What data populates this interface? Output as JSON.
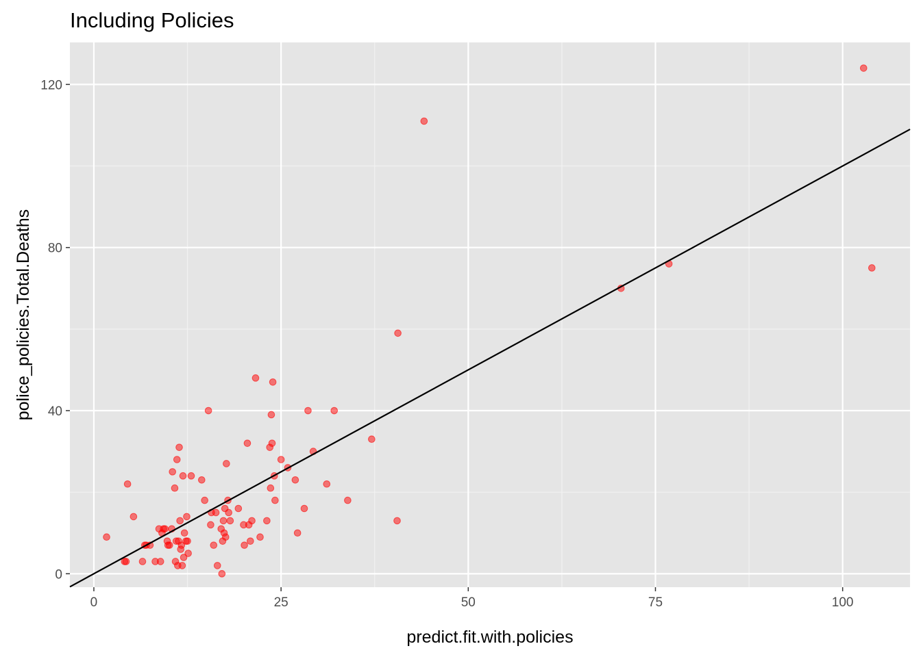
{
  "chart_data": {
    "type": "scatter",
    "title": "Including Policies",
    "xlabel": "predict.fit.with.policies",
    "ylabel": "police_policies.Total.Deaths",
    "xlim": [
      -3.2,
      109
    ],
    "ylim": [
      -3.3,
      130.3
    ],
    "x_ticks": [
      0,
      25,
      50,
      75,
      100
    ],
    "y_ticks": [
      0,
      40,
      80,
      120
    ],
    "grid": true,
    "legend": "none",
    "point_color": "#ff0000",
    "point_opacity": 0.5,
    "panel_background": "#e5e5e5",
    "line_color": "#000000",
    "reference_line": {
      "slope": 1,
      "intercept": 0
    },
    "points": [
      [
        1.7,
        9
      ],
      [
        4.1,
        3
      ],
      [
        4.3,
        3
      ],
      [
        4.5,
        22
      ],
      [
        5.3,
        14
      ],
      [
        6.5,
        3
      ],
      [
        6.8,
        7
      ],
      [
        7,
        7
      ],
      [
        7.5,
        7
      ],
      [
        8.2,
        3
      ],
      [
        8.7,
        11
      ],
      [
        8.9,
        3
      ],
      [
        9.1,
        10
      ],
      [
        9.3,
        11
      ],
      [
        9.5,
        11
      ],
      [
        9.8,
        8
      ],
      [
        9.9,
        7
      ],
      [
        10.1,
        7
      ],
      [
        10.4,
        11
      ],
      [
        10.5,
        25
      ],
      [
        10.8,
        21
      ],
      [
        10.9,
        3
      ],
      [
        11,
        8
      ],
      [
        11.1,
        28
      ],
      [
        11.2,
        2
      ],
      [
        11.3,
        8
      ],
      [
        11.4,
        31
      ],
      [
        11.5,
        13
      ],
      [
        11.6,
        6
      ],
      [
        11.7,
        7
      ],
      [
        11.8,
        2
      ],
      [
        11.9,
        24
      ],
      [
        12,
        4
      ],
      [
        12.1,
        10
      ],
      [
        12.3,
        8
      ],
      [
        12.4,
        14
      ],
      [
        12.5,
        8
      ],
      [
        12.6,
        5
      ],
      [
        13,
        24
      ],
      [
        14.4,
        23
      ],
      [
        14.8,
        18
      ],
      [
        15.3,
        40
      ],
      [
        15.6,
        12
      ],
      [
        15.7,
        15
      ],
      [
        16,
        7
      ],
      [
        16.3,
        15
      ],
      [
        16.5,
        2
      ],
      [
        17,
        11
      ],
      [
        17.1,
        0
      ],
      [
        17.2,
        8
      ],
      [
        17.3,
        13
      ],
      [
        17.4,
        10
      ],
      [
        17.5,
        16
      ],
      [
        17.6,
        9
      ],
      [
        17.7,
        27
      ],
      [
        17.9,
        18
      ],
      [
        18,
        15
      ],
      [
        18.2,
        13
      ],
      [
        19.3,
        16
      ],
      [
        20,
        12
      ],
      [
        20.1,
        7
      ],
      [
        20.5,
        32
      ],
      [
        20.7,
        12
      ],
      [
        20.9,
        8
      ],
      [
        21.1,
        13
      ],
      [
        21.6,
        48
      ],
      [
        22.2,
        9
      ],
      [
        23.1,
        13
      ],
      [
        23.5,
        31
      ],
      [
        23.6,
        21
      ],
      [
        23.7,
        39
      ],
      [
        23.8,
        32
      ],
      [
        23.9,
        47
      ],
      [
        24.1,
        24
      ],
      [
        24.2,
        18
      ],
      [
        25,
        28
      ],
      [
        25.9,
        26
      ],
      [
        26.9,
        23
      ],
      [
        27.2,
        10
      ],
      [
        28.1,
        16
      ],
      [
        28.6,
        40
      ],
      [
        29.3,
        30
      ],
      [
        31.1,
        22
      ],
      [
        32.1,
        40
      ],
      [
        33.9,
        18
      ],
      [
        37.1,
        33
      ],
      [
        40.5,
        13
      ],
      [
        40.6,
        59
      ],
      [
        44.1,
        111
      ],
      [
        70.4,
        70
      ],
      [
        76.8,
        76
      ],
      [
        102.8,
        124
      ],
      [
        103.9,
        75
      ]
    ]
  }
}
